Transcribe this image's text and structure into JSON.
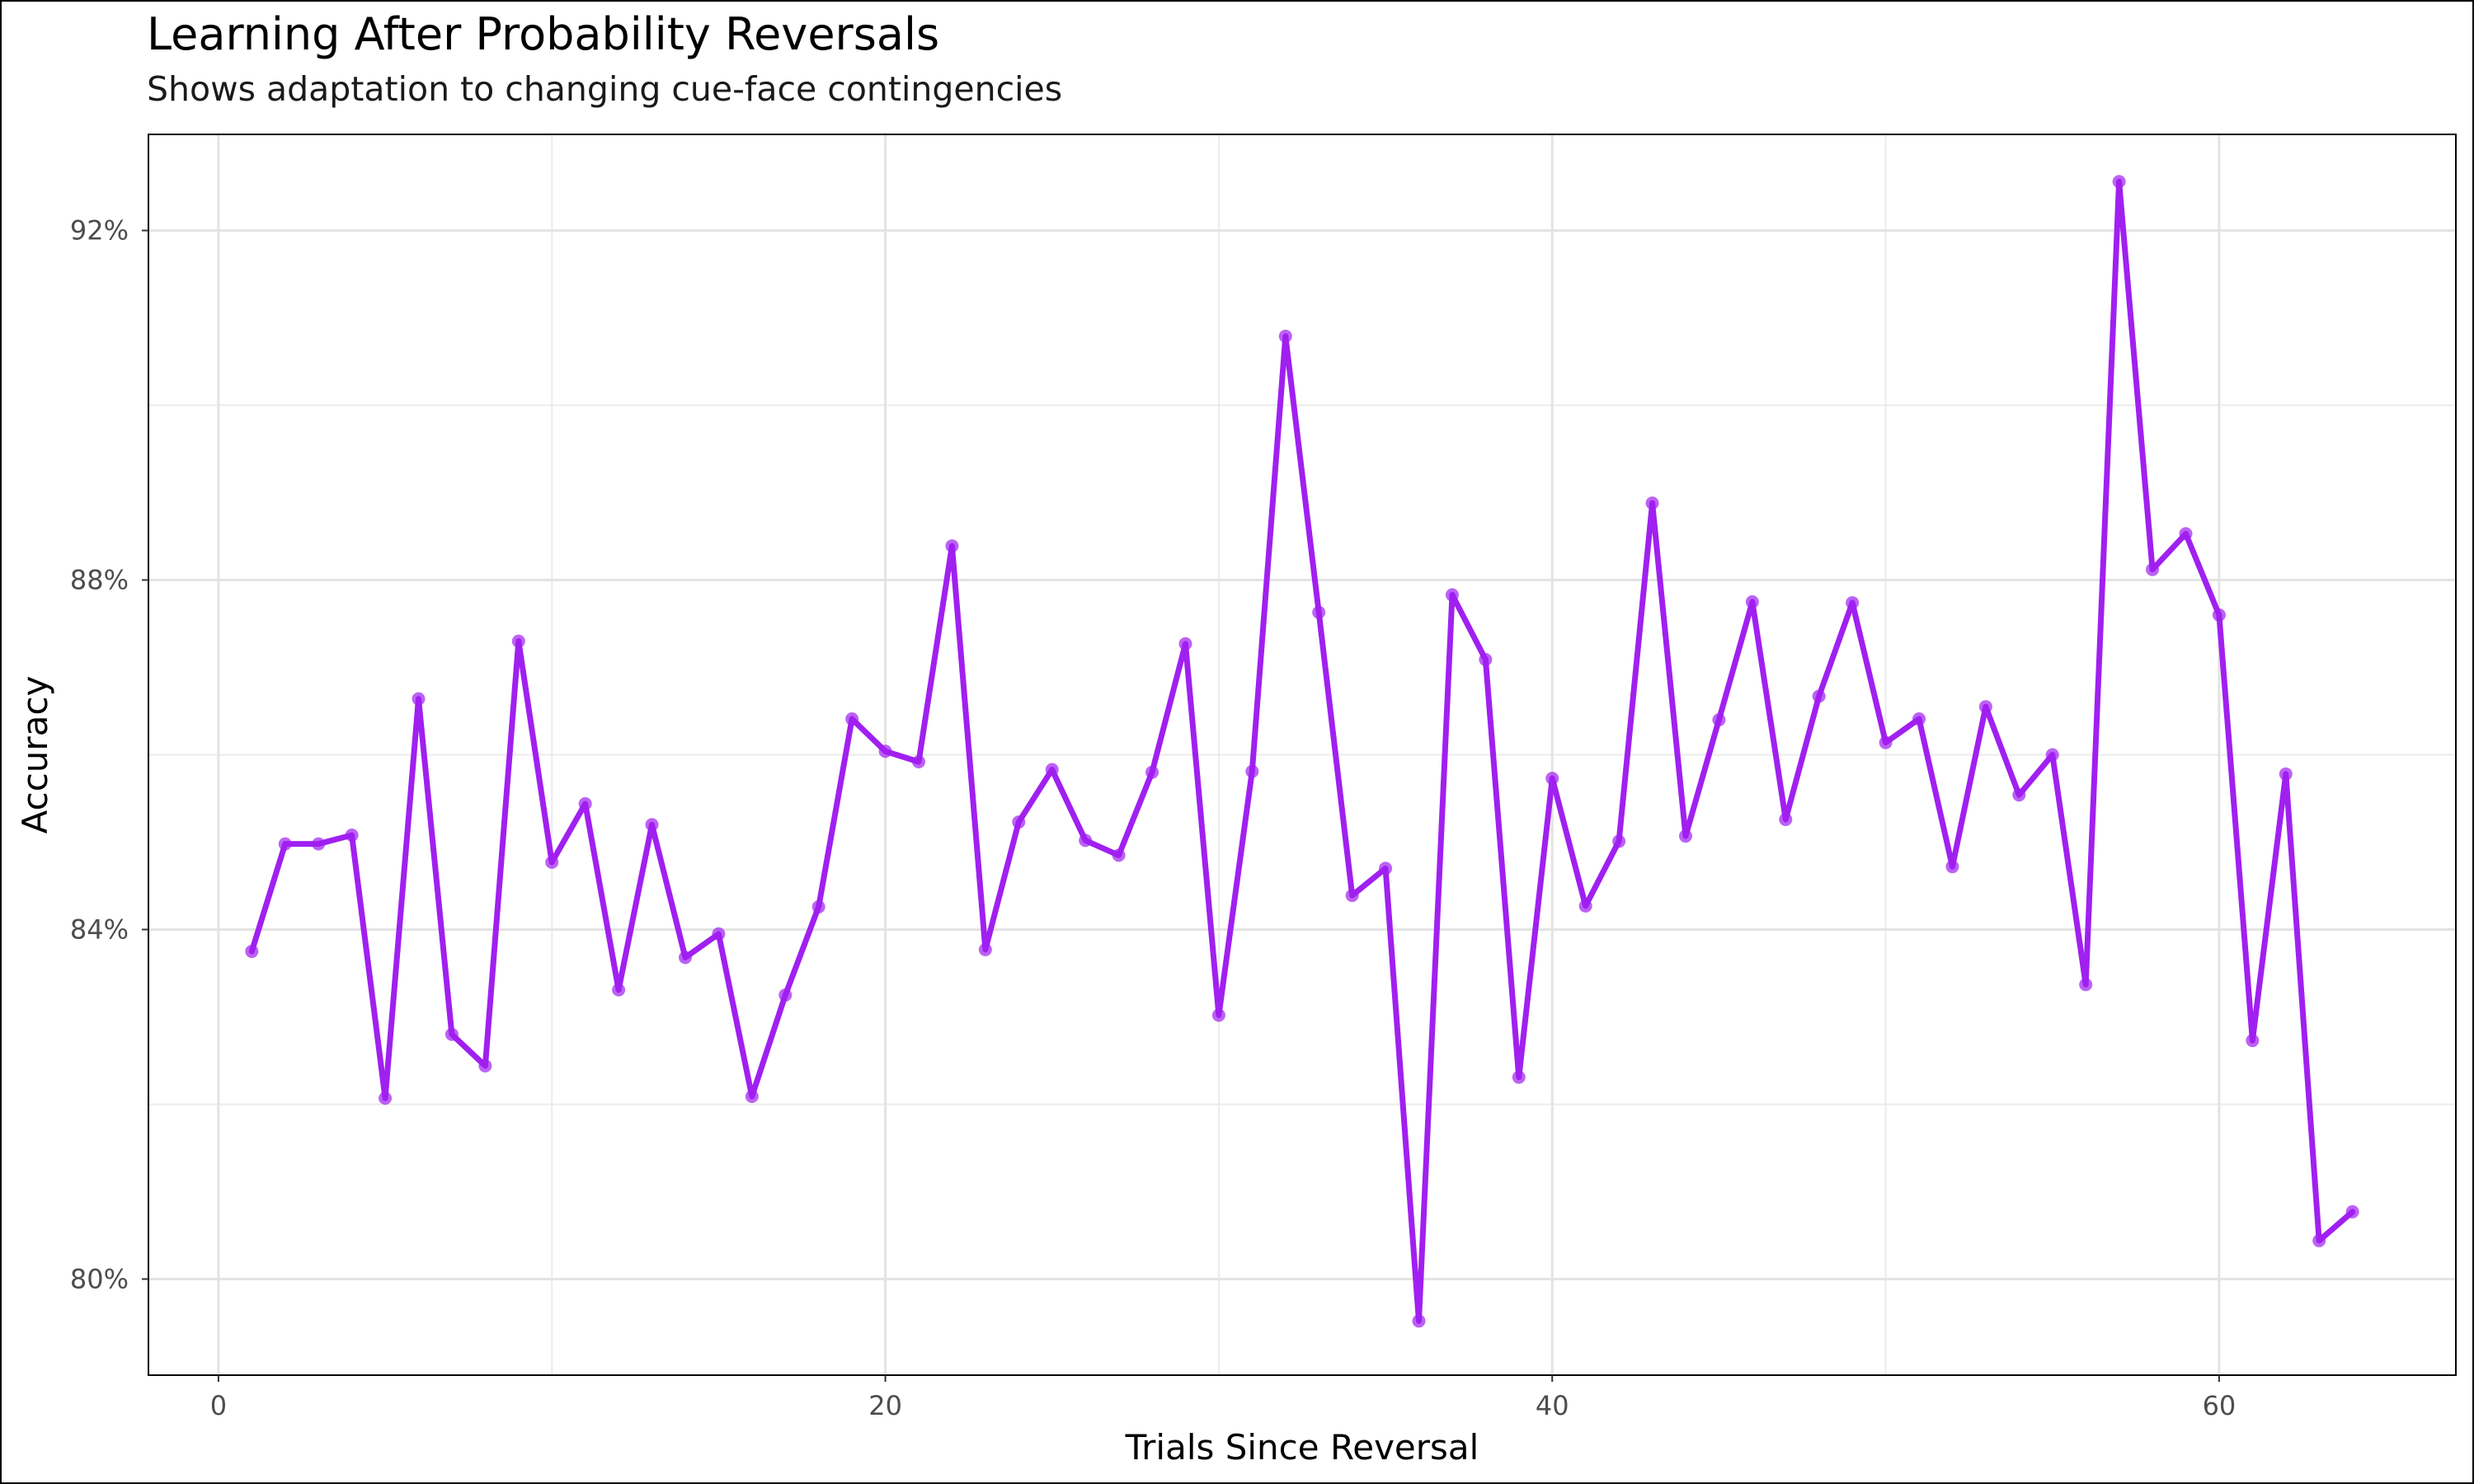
{
  "chart_data": {
    "type": "line",
    "title": "Learning After Probability Reversals",
    "subtitle": "Shows adaptation to changing cue-face contingencies",
    "xlabel": "Trials Since Reversal",
    "ylabel": "Accuracy",
    "xlim": [
      -2.1,
      67.1
    ],
    "ylim": [
      0.789,
      0.931
    ],
    "x_ticks": [
      0,
      20,
      40,
      60
    ],
    "x_tick_labels": [
      "0",
      "20",
      "40",
      "60"
    ],
    "y_ticks": [
      0.8,
      0.84,
      0.88,
      0.92
    ],
    "y_tick_labels": [
      "80%",
      "84%",
      "88%",
      "92%"
    ],
    "grid": true,
    "series": [
      {
        "color": "#a020f0",
        "x": [
          1,
          2,
          3,
          4,
          5,
          6,
          7,
          8,
          9,
          10,
          11,
          12,
          13,
          14,
          15,
          16,
          17,
          18,
          19,
          20,
          21,
          22,
          23,
          24,
          25,
          26,
          27,
          28,
          29,
          30,
          31,
          32,
          33,
          34,
          35,
          36,
          37,
          38,
          39,
          40,
          41,
          42,
          43,
          44,
          45,
          46,
          47,
          48,
          49,
          50,
          51,
          52,
          53,
          54,
          55,
          56,
          57,
          58,
          59,
          60,
          61,
          62,
          63,
          64
        ],
        "values": [
          0.8375,
          0.8498,
          0.8498,
          0.8508,
          0.8207,
          0.8664,
          0.828,
          0.8244,
          0.873,
          0.8477,
          0.8544,
          0.8331,
          0.852,
          0.8368,
          0.8395,
          0.8209,
          0.8325,
          0.8426,
          0.8641,
          0.8604,
          0.8592,
          0.8839,
          0.8377,
          0.8523,
          0.8583,
          0.8502,
          0.8485,
          0.858,
          0.8727,
          0.8302,
          0.8581,
          0.9079,
          0.8763,
          0.8439,
          0.847,
          0.7952,
          0.8783,
          0.8709,
          0.8231,
          0.8573,
          0.8427,
          0.8501,
          0.8888,
          0.8507,
          0.864,
          0.8775,
          0.8526,
          0.8667,
          0.8774,
          0.8614,
          0.8641,
          0.8472,
          0.8655,
          0.8554,
          0.86,
          0.8337,
          0.9256,
          0.8812,
          0.8853,
          0.876,
          0.8273,
          0.8578,
          0.8044,
          0.8077
        ]
      }
    ]
  }
}
